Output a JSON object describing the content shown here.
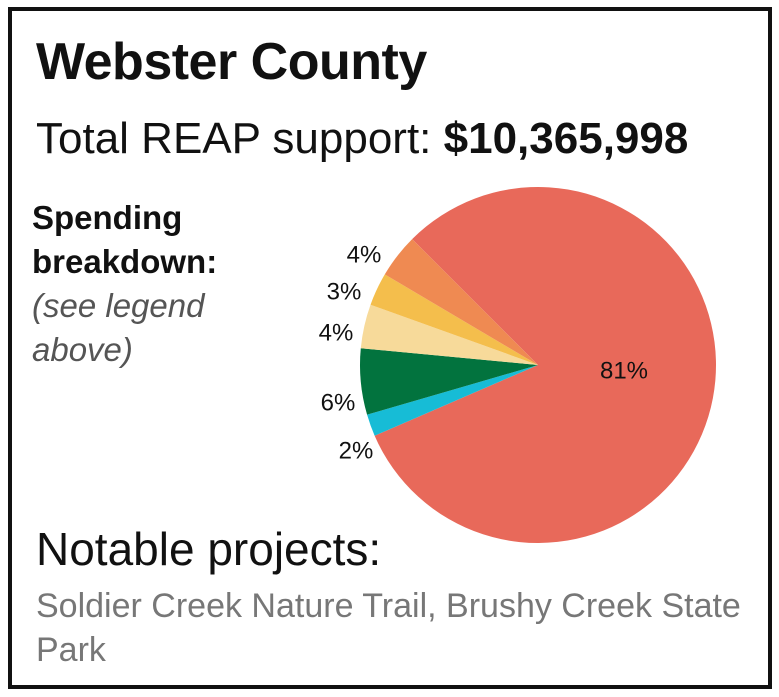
{
  "title": "Webster County",
  "total": {
    "label": "Total REAP support:",
    "amount": "$10,365,998"
  },
  "breakdown": {
    "heading_line1": "Spending",
    "heading_line2": "breakdown:",
    "note_line1": "(see legend",
    "note_line2": "above)"
  },
  "projects": {
    "heading": "Notable projects:",
    "list": "Soldier Creek Nature Trail, Brushy Creek State Park"
  },
  "chart_data": {
    "type": "pie",
    "start_angle_deg": -135,
    "slices": [
      {
        "value": 81,
        "label": "81%",
        "color": "#E8695A"
      },
      {
        "value": 2,
        "label": "2%",
        "color": "#17BCD6"
      },
      {
        "value": 6,
        "label": "6%",
        "color": "#02733E"
      },
      {
        "value": 4,
        "label": "4%",
        "color": "#F7DA9A"
      },
      {
        "value": 3,
        "label": "3%",
        "color": "#F4BE4C"
      },
      {
        "value": 4,
        "label": "4%",
        "color": "#EF8A52"
      }
    ]
  }
}
